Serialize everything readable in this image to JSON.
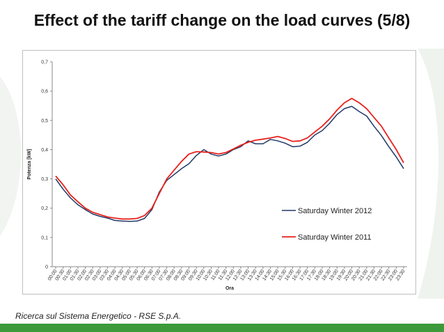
{
  "slide": {
    "title": "Effect of the tariff change on the load curves (5/8)",
    "footer": "Ricerca sul Sistema Energetico - RSE S.p.A.",
    "accent_color": "#3c9a3a"
  },
  "chart_data": {
    "type": "line",
    "title": "",
    "xlabel": "Ora",
    "ylabel": "Potenza [kW]",
    "ylim": [
      0,
      0.7
    ],
    "yticks": [
      "0",
      "0,1",
      "0,2",
      "0,3",
      "0,4",
      "0,5",
      "0,6",
      "0,7"
    ],
    "ytick_values": [
      0,
      0.1,
      0.2,
      0.3,
      0.4,
      0.5,
      0.6,
      0.7
    ],
    "grid": false,
    "legend_position": "center-right",
    "x": [
      "00:00",
      "00:30",
      "01:00",
      "01:30",
      "02:00",
      "02:30",
      "03:00",
      "03:30",
      "04:00",
      "04:30",
      "05:00",
      "05:30",
      "06:00",
      "06:30",
      "07:00",
      "07:30",
      "08:00",
      "08:30",
      "09:00",
      "09:30",
      "10:00",
      "10:30",
      "11:00",
      "11:30",
      "12:00",
      "12:30",
      "13:00",
      "13:30",
      "14:00",
      "14:30",
      "15:00",
      "15:30",
      "16:00",
      "16:30",
      "17:00",
      "17:30",
      "18:00",
      "18:30",
      "19:00",
      "19:30",
      "20:00",
      "20:30",
      "21:00",
      "21:30",
      "22:00",
      "22:30",
      "23:00",
      "23:30"
    ],
    "series": [
      {
        "name": "Saturday Winter 2012",
        "color": "#1f3864",
        "values": [
          0.3,
          0.265,
          0.235,
          0.212,
          0.195,
          0.18,
          0.172,
          0.166,
          0.158,
          0.156,
          0.155,
          0.156,
          0.165,
          0.195,
          0.255,
          0.295,
          0.315,
          0.335,
          0.352,
          0.38,
          0.4,
          0.385,
          0.378,
          0.385,
          0.4,
          0.41,
          0.43,
          0.42,
          0.42,
          0.435,
          0.43,
          0.422,
          0.41,
          0.412,
          0.425,
          0.45,
          0.465,
          0.49,
          0.52,
          0.54,
          0.548,
          0.53,
          0.515,
          0.48,
          0.448,
          0.41,
          0.375,
          0.335
        ]
      },
      {
        "name": "Saturday Winter 2011",
        "color": "#e8211d",
        "values": [
          0.31,
          0.28,
          0.245,
          0.222,
          0.2,
          0.186,
          0.178,
          0.17,
          0.166,
          0.163,
          0.163,
          0.165,
          0.175,
          0.2,
          0.25,
          0.3,
          0.33,
          0.36,
          0.385,
          0.393,
          0.392,
          0.39,
          0.385,
          0.39,
          0.402,
          0.415,
          0.425,
          0.432,
          0.436,
          0.44,
          0.445,
          0.438,
          0.428,
          0.43,
          0.44,
          0.46,
          0.48,
          0.505,
          0.535,
          0.56,
          0.575,
          0.56,
          0.54,
          0.51,
          0.48,
          0.44,
          0.4,
          0.355
        ]
      }
    ]
  }
}
